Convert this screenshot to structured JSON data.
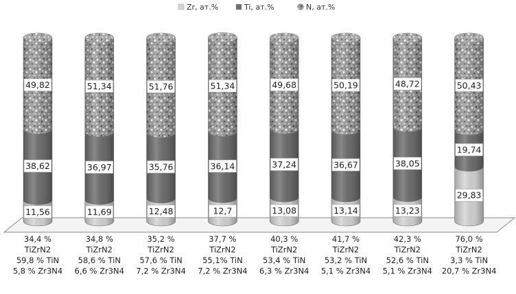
{
  "chart_data": {
    "type": "bar",
    "stacked": true,
    "categories": [
      [
        "34,4 %",
        "TiZrN2",
        "59,8 % TiN",
        "5,8 % Zr3N4"
      ],
      [
        "34,8 %",
        "TiZrN2",
        "58,6 % TiN",
        "6,6 % Zr3N4"
      ],
      [
        "35,2 %",
        "TiZrN2",
        "57,6 % TiN",
        "7,2 % Zr3N4"
      ],
      [
        "37,7 %",
        "TiZrN2",
        "55,1% TiN",
        "7,2 % Zr3N4"
      ],
      [
        "40,3 %",
        "TiZrN2",
        "53,4 % TiN",
        "6,3 % Zr3N4"
      ],
      [
        "41,7 %",
        "TiZrN2",
        "53,2 % TiN",
        "5,1 % Zr3N4"
      ],
      [
        "42,3 %",
        "TiZrN2",
        "52,6 % TiN",
        "5,1 % Zr3N4"
      ],
      [
        "76,0 %",
        "TiZrN2",
        "3,3 % TiN",
        "20,7 % Zr3N4"
      ]
    ],
    "series": [
      {
        "name": "Zr, ат.%",
        "values": [
          11.56,
          11.69,
          12.48,
          12.7,
          13.08,
          13.14,
          13.23,
          29.83
        ],
        "labels": [
          "11,56",
          "11,69",
          "12,48",
          "12,7",
          "13,08",
          "13,14",
          "13,23",
          "29,83"
        ],
        "color": "#d4d4d4"
      },
      {
        "name": "Ti, ат.%",
        "values": [
          38.62,
          36.97,
          35.76,
          36.14,
          37.24,
          36.67,
          38.05,
          19.74
        ],
        "labels": [
          "38,62",
          "36,97",
          "35,76",
          "36,14",
          "37,24",
          "36,67",
          "38,05",
          "19,74"
        ],
        "color": "#6e6e6e"
      },
      {
        "name": "N, ат.%",
        "values": [
          49.82,
          51.34,
          51.76,
          51.34,
          49.68,
          50.19,
          48.72,
          50.43
        ],
        "labels": [
          "49,82",
          "51,34",
          "51,76",
          "51,34",
          "49,68",
          "50,19",
          "48,72",
          "50,43"
        ],
        "color": "#a8a8a8"
      }
    ],
    "ylim": [
      0,
      100
    ],
    "legend": "top",
    "grid": false
  }
}
